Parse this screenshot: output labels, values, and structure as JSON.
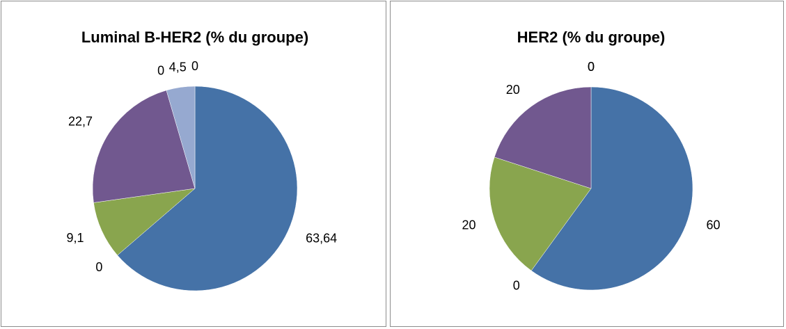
{
  "chart_data": [
    {
      "type": "pie",
      "title": "Luminal B-HER2  (% du groupe)",
      "values": [
        63.64,
        0,
        9.1,
        22.7,
        0,
        4.5,
        0
      ],
      "value_labels": [
        "63,64",
        "0",
        "9,1",
        "22,7",
        "0",
        "4,5",
        "0"
      ],
      "colors": [
        "#4572a7",
        "#aa4643",
        "#89a54e",
        "#71588f",
        "#4198af",
        "#96a9d0",
        "#db843d"
      ]
    },
    {
      "type": "pie",
      "title": "HER2 (% du groupe)",
      "values": [
        60,
        0,
        20,
        20,
        0,
        0
      ],
      "value_labels": [
        "60",
        "0",
        "20",
        "20",
        "0",
        "0"
      ],
      "colors": [
        "#4572a7",
        "#aa4643",
        "#89a54e",
        "#71588f",
        "#4198af",
        "#db843d"
      ]
    }
  ]
}
